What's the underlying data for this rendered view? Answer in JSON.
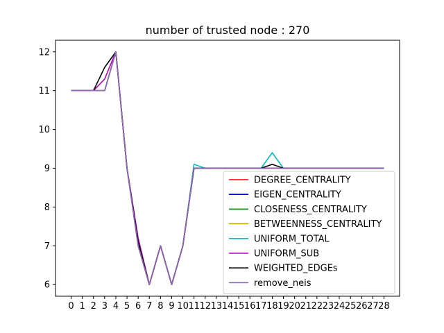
{
  "chart_data": {
    "type": "line",
    "title": "number of trusted node : 270",
    "xlabel": "",
    "ylabel": "",
    "x": [
      0,
      1,
      2,
      3,
      4,
      5,
      6,
      7,
      8,
      9,
      10,
      11,
      12,
      13,
      14,
      15,
      16,
      17,
      18,
      19,
      20,
      21,
      22,
      23,
      24,
      25,
      26,
      27,
      28
    ],
    "x_tick_labels": [
      "0",
      "1",
      "2",
      "3",
      "4",
      "5",
      "6",
      "7",
      "8",
      "9",
      "10",
      "11",
      "12",
      "13",
      "14",
      "15",
      "16",
      "17",
      "18",
      "19",
      "20",
      "21",
      "22",
      "23",
      "24",
      "25",
      "26",
      "27",
      "28"
    ],
    "xlim": [
      -1.4,
      29.4
    ],
    "ylim": [
      5.7,
      12.3
    ],
    "y_ticks": [
      6,
      7,
      8,
      9,
      10,
      11,
      12
    ],
    "y_tick_labels": [
      "6",
      "7",
      "8",
      "9",
      "10",
      "11",
      "12"
    ],
    "grid": false,
    "legend_position": "lower-right",
    "series": [
      {
        "name": "DEGREE_CENTRALITY",
        "color": "#ff0000",
        "values": [
          11,
          11,
          11,
          11,
          12,
          9,
          7,
          6,
          7,
          6,
          7,
          9,
          9,
          9,
          9,
          9,
          9,
          9,
          9,
          9,
          9,
          9,
          9,
          9,
          9,
          9,
          9,
          9,
          9
        ]
      },
      {
        "name": "EIGEN_CENTRALITY",
        "color": "#0000cc",
        "values": [
          11,
          11,
          11,
          11,
          12,
          9,
          7,
          6,
          7,
          6,
          7,
          9,
          9,
          9,
          9,
          9,
          9,
          9,
          9,
          9,
          9,
          9,
          9,
          9,
          9,
          9,
          9,
          9,
          9
        ]
      },
      {
        "name": "CLOSENESS_CENTRALITY",
        "color": "#008000",
        "values": [
          11,
          11,
          11,
          11,
          12,
          9,
          7,
          6,
          7,
          6,
          7,
          9,
          9,
          9,
          9,
          9,
          9,
          9,
          9,
          9,
          9,
          9,
          9,
          9,
          9,
          9,
          9,
          9,
          9
        ]
      },
      {
        "name": "BETWEENNESS_CENTRALITY",
        "color": "#ccaa00",
        "values": [
          11,
          11,
          11,
          11,
          12,
          9,
          7,
          6,
          7,
          6,
          7,
          9,
          9,
          9,
          9,
          9,
          9,
          9,
          9,
          9,
          9,
          9,
          9,
          9,
          9,
          9,
          9,
          9,
          9
        ]
      },
      {
        "name": "UNIFORM_TOTAL",
        "color": "#00bfbf",
        "values": [
          11,
          11,
          11,
          11,
          12,
          9,
          7,
          6,
          7,
          6,
          7,
          9.1,
          9,
          9,
          9,
          9,
          9,
          9,
          9.4,
          9,
          9,
          9,
          9,
          9,
          9,
          9,
          9,
          9,
          9
        ]
      },
      {
        "name": "UNIFORM_SUB",
        "color": "#bf00bf",
        "values": [
          11,
          11,
          11,
          11.3,
          12,
          9,
          7.2,
          6,
          7,
          6,
          7,
          9,
          9,
          9,
          9,
          9,
          9,
          9,
          9,
          9,
          9,
          9,
          9,
          9,
          9,
          9,
          9,
          9,
          9
        ]
      },
      {
        "name": "WEIGHTED_EDGEs",
        "color": "#000000",
        "values": [
          11,
          11,
          11,
          11.6,
          12,
          9,
          7.1,
          6,
          7,
          6,
          7,
          9,
          9,
          9,
          9,
          9,
          9,
          9,
          9.1,
          9,
          9,
          9,
          9,
          9,
          9,
          9,
          9,
          9,
          9
        ]
      },
      {
        "name": "remove_neis",
        "color": "#9467bd",
        "values": [
          11,
          11,
          11,
          11,
          12,
          9,
          7,
          6,
          7,
          6,
          7,
          9,
          9,
          9,
          9,
          9,
          9,
          9,
          9,
          9,
          9,
          9,
          9,
          9,
          9,
          9,
          9,
          9,
          9
        ]
      }
    ]
  }
}
